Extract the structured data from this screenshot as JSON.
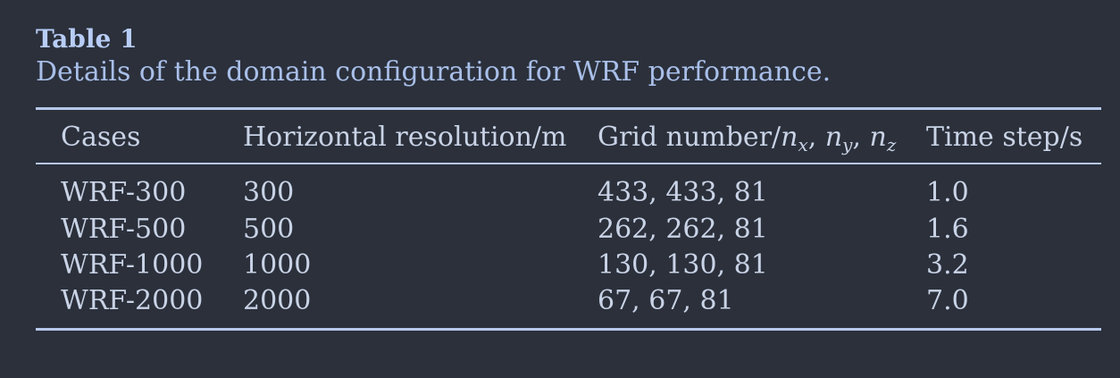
{
  "caption": {
    "title": "Table 1",
    "text": "Details of the domain configuration for WRF performance."
  },
  "table": {
    "headers": {
      "cases": "Cases",
      "resolution": "Horizontal resolution/m",
      "grid_prefix": "Grid number/",
      "grid_vars": [
        {
          "base": "n",
          "sub": "x"
        },
        {
          "base": "n",
          "sub": "y"
        },
        {
          "base": "n",
          "sub": "z"
        }
      ],
      "timestep": "Time step/s"
    },
    "rows": [
      {
        "case": "WRF-300",
        "resolution": "300",
        "grid": "433, 433, 81",
        "timestep": "1.0"
      },
      {
        "case": "WRF-500",
        "resolution": "500",
        "grid": "262, 262, 81",
        "timestep": "1.6"
      },
      {
        "case": "WRF-1000",
        "resolution": "1000",
        "grid": "130, 130, 81",
        "timestep": "3.2"
      },
      {
        "case": "WRF-2000",
        "resolution": "2000",
        "grid": "67, 67, 81",
        "timestep": "7.0"
      }
    ]
  }
}
